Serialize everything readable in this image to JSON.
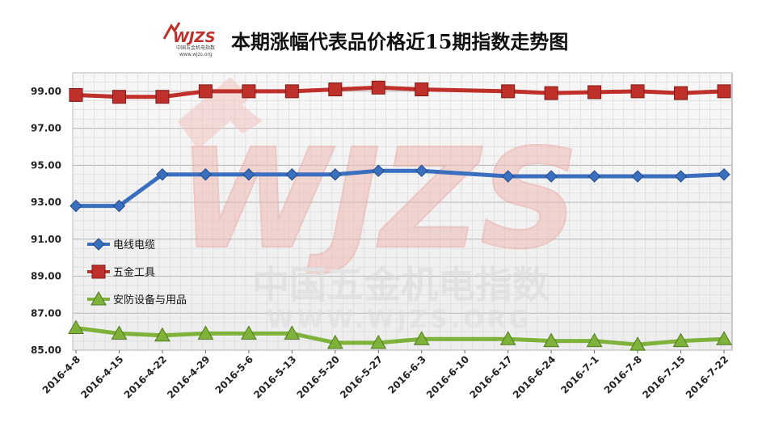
{
  "header": {
    "title": "本期涨幅代表品价格近15期指数走势图",
    "logo_text": "WJZS",
    "logo_subtitle_cn": "中国五金机电指数",
    "logo_subtitle_url": "www.wjzs.org"
  },
  "watermark": {
    "text_big": "WJZS",
    "text_cn": "中国五金机电指数",
    "text_url": "WWW.WJZS.ORG"
  },
  "colors": {
    "blue": "#3a6fbf",
    "red": "#c0302a",
    "green": "#7fb23a",
    "grid": "#c8c8c8"
  },
  "chart_data": {
    "type": "line",
    "title": "本期涨幅代表品价格近15期指数走势图",
    "categories": [
      "2016-4-8",
      "2016-4-15",
      "2016-4-22",
      "2016-4-29",
      "2016-5-6",
      "2016-5-13",
      "2016-5-20",
      "2016-5-27",
      "2016-6-3",
      "2016-6-10",
      "2016-6-17",
      "2016-6-24",
      "2016-7-1",
      "2016-7-8",
      "2016-7-15",
      "2016-7-22"
    ],
    "y_ticks": [
      "85.00",
      "87.00",
      "89.00",
      "91.00",
      "93.00",
      "95.00",
      "97.00",
      "99.00"
    ],
    "ylim": [
      85,
      100
    ],
    "grid": true,
    "legend_position": "left-middle",
    "series": [
      {
        "name": "电线电缆",
        "color": "#3a6fbf",
        "marker": "diamond",
        "values": [
          92.8,
          92.8,
          94.5,
          94.5,
          94.5,
          94.5,
          94.5,
          94.7,
          94.7,
          null,
          94.4,
          94.4,
          94.4,
          94.4,
          94.4,
          94.5
        ]
      },
      {
        "name": "五金工具",
        "color": "#c0302a",
        "marker": "square",
        "values": [
          98.8,
          98.7,
          98.7,
          99.0,
          99.0,
          99.0,
          99.1,
          99.2,
          99.1,
          null,
          99.0,
          98.9,
          98.95,
          99.0,
          98.9,
          99.0
        ]
      },
      {
        "name": "安防设备与用品",
        "color": "#7fb23a",
        "marker": "triangle",
        "values": [
          86.2,
          85.9,
          85.8,
          85.9,
          85.9,
          85.9,
          85.4,
          85.4,
          85.6,
          null,
          85.6,
          85.5,
          85.5,
          85.3,
          85.5,
          85.6
        ]
      }
    ]
  }
}
